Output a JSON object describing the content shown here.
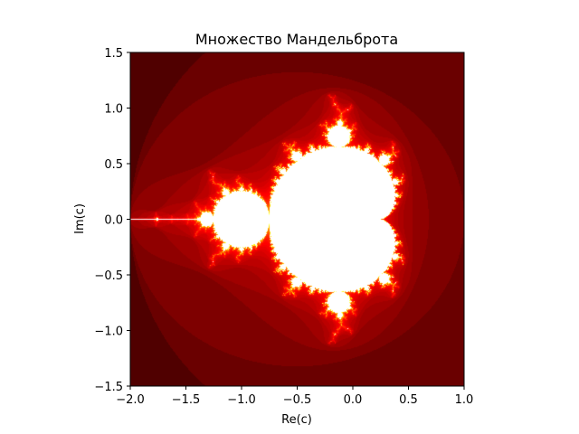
{
  "chart_data": {
    "type": "heatmap",
    "title": "Множество Мандельброта",
    "xlabel": "Re(c)",
    "ylabel": "Im(c)",
    "xlim": [
      -2.0,
      1.0
    ],
    "ylim": [
      -1.5,
      1.5
    ],
    "x_ticks": [
      -2.0,
      -1.5,
      -1.0,
      -0.5,
      0.0,
      0.5,
      1.0
    ],
    "x_tick_labels": [
      "−2.0",
      "−1.5",
      "−1.0",
      "−0.5",
      "0.0",
      "0.5",
      "1.0"
    ],
    "y_ticks": [
      1.5,
      1.0,
      0.5,
      0.0,
      -0.5,
      -1.0,
      -1.5
    ],
    "y_tick_labels": [
      "1.5",
      "1.0",
      "0.5",
      "0.0",
      "−0.5",
      "−1.0",
      "−1.5"
    ],
    "grid": false,
    "colormap": "hot",
    "colors": {
      "background": "#160000",
      "set": "#ffffff",
      "edge_dark": "#5a0000",
      "edge_red": "#c41a00",
      "edge_orange": "#ff8a00",
      "edge_yellow": "#ffee66"
    },
    "regions": [
      {
        "name": "main cardioid",
        "center": [
          -0.25,
          0.0
        ],
        "extent_re": [
          -0.75,
          0.375
        ]
      },
      {
        "name": "period-2 bulb",
        "center": [
          -1.0,
          0.0
        ],
        "radius": 0.25
      },
      {
        "name": "period-3 bulb",
        "center": [
          -0.1226,
          0.7449
        ],
        "radius": 0.095
      },
      {
        "name": "period-3 bulb",
        "center": [
          -0.1226,
          -0.7449
        ],
        "radius": 0.095
      },
      {
        "name": "period-4 bulb",
        "center": [
          -1.3107,
          0.0
        ],
        "radius": 0.058
      },
      {
        "name": "minibrot",
        "center": [
          -1.7549,
          0.0
        ]
      }
    ]
  }
}
